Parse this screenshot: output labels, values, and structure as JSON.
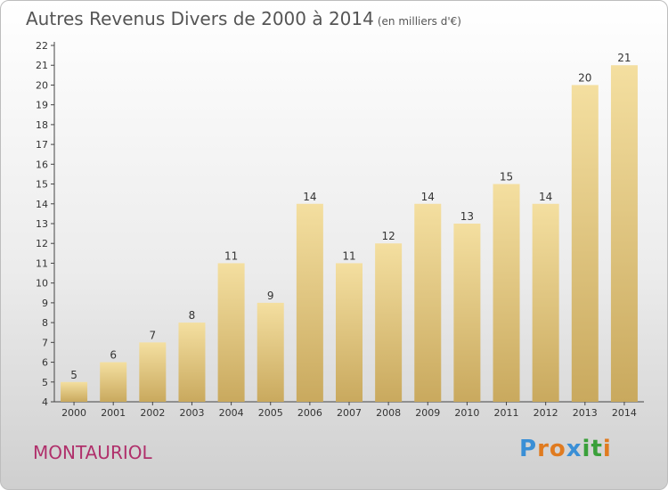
{
  "title": "Autres Revenus Divers de 2000 à 2014",
  "subtitle": "(en milliers d'€)",
  "location": "MONTAURIOL",
  "logo": {
    "text": "Proxiti",
    "letters": [
      "P",
      "r",
      "o",
      "x",
      "i",
      "t",
      "i"
    ],
    "colors": [
      "#3a8fd6",
      "#e07b20",
      "#e07b20",
      "#3a8fd6",
      "#3aa03a",
      "#3aa03a",
      "#e07b20"
    ]
  },
  "colors": {
    "bar_top": "#f4dfa0",
    "bar_bottom": "#c9a95e",
    "location": "#b0306b"
  },
  "chart_data": {
    "type": "bar",
    "categories": [
      "2000",
      "2001",
      "2002",
      "2003",
      "2004",
      "2005",
      "2006",
      "2007",
      "2008",
      "2009",
      "2010",
      "2011",
      "2012",
      "2013",
      "2014"
    ],
    "values": [
      5,
      6,
      7,
      8,
      11,
      9,
      14,
      11,
      12,
      14,
      13,
      15,
      14,
      20,
      21
    ],
    "ylim": [
      4,
      22
    ],
    "yticks": [
      4,
      5,
      6,
      7,
      8,
      9,
      10,
      11,
      12,
      13,
      14,
      15,
      16,
      17,
      18,
      19,
      20,
      21,
      22
    ],
    "grid": false
  }
}
